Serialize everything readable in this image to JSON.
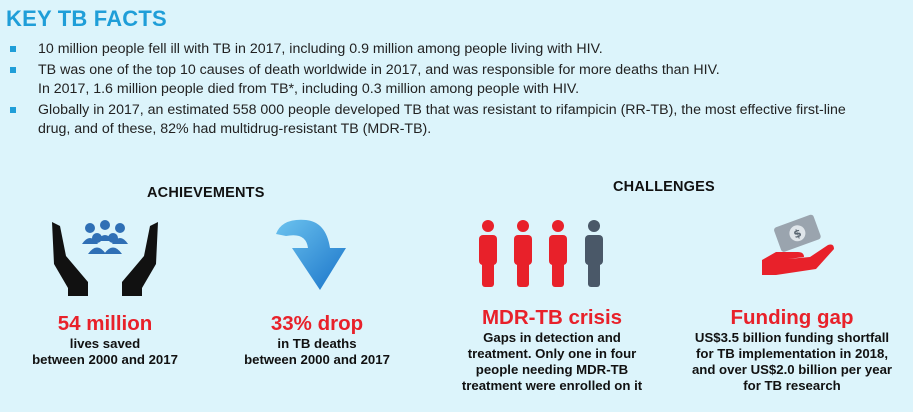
{
  "title": "KEY TB FACTS",
  "bullets": [
    "10 million people fell ill with TB in 2017, including 0.9 million among people living with HIV.",
    "TB was one of the top 10 causes of death worldwide in 2017, and was responsible for more deaths than HIV.",
    "In 2017, 1.6 million people died from TB*, including 0.3 million among people with HIV.",
    "Globally in 2017, an estimated 558 000 people developed TB that was resistant to rifampicin (RR-TB), the most effective first-line",
    "drug, and of these, 82% had multidrug-resistant TB (MDR-TB)."
  ],
  "achievements": {
    "heading": "ACHIEVEMENTS",
    "items": [
      {
        "icon": "hands-people-icon",
        "headline": "54 million",
        "lines": [
          "lives saved",
          "between 2000 and 2017"
        ]
      },
      {
        "icon": "down-arrow-icon",
        "headline": "33% drop",
        "lines": [
          "in TB deaths",
          "between 2000 and 2017"
        ]
      }
    ]
  },
  "challenges": {
    "heading": "CHALLENGES",
    "items": [
      {
        "icon": "people-icon",
        "headline": "MDR-TB crisis",
        "lines": [
          "Gaps in detection and",
          "treatment. Only one in four",
          "people needing MDR-TB",
          "treatment were enrolled on it"
        ]
      },
      {
        "icon": "money-hand-icon",
        "headline": "Funding gap",
        "lines": [
          "US$3.5 billion funding shortfall",
          "for TB implementation in 2018,",
          "and over US$2.0 billion per year",
          "for TB research"
        ]
      }
    ]
  },
  "colors": {
    "accent": "#1f9ed8",
    "red": "#e8212a",
    "background": "#dcf4fb"
  }
}
